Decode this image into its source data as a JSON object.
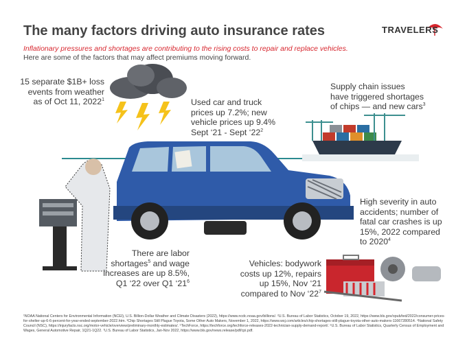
{
  "header": {
    "title": "The many factors driving auto insurance rates",
    "logo": "TRAVELERS",
    "subtitle": "Inflationary pressures and shortages are contributing to the rising costs to repair and replace vehicles.",
    "intro": "Here are some of the factors that may affect premiums moving forward."
  },
  "callouts": [
    {
      "lines": [
        "15 separate $1B+ loss",
        "events from weather",
        "as of Oct 11, 2022"
      ],
      "sup": "1"
    },
    {
      "lines": [
        "Used car and truck",
        "prices up 7.2%; new",
        "vehicle prices up 9.4%",
        "Sept ‘21 - Sept ‘22"
      ],
      "sup": "2"
    },
    {
      "lines": [
        "Supply chain issues",
        "have triggered shortages",
        "of chips — and new cars"
      ],
      "sup": "3"
    },
    {
      "lines": [
        "High severity in auto",
        "accidents; number of",
        "fatal car crashes is up",
        "15%, 2022 compared",
        "to 2020"
      ],
      "sup": "4"
    },
    {
      "lines": [
        "There are labor",
        "shortages",
        "and wage",
        "increases are up 8.5%,",
        "Q1 ‘22 over Q1 ‘21"
      ],
      "sups": [
        "5",
        "6"
      ]
    },
    {
      "lines": [
        "Vehicles: bodywork",
        "costs up 12%, repairs",
        "up 15%, Nov ‘21",
        "compared to Nov ‘22"
      ],
      "sup": "7"
    }
  ],
  "footnotes": "¹NOAA National Centers for Environmental Information (NCEI), U.S. Billion-Dollar Weather and Climate Disasters (2022), https://www.ncdc.noaa.gov/billions/. ²U.S. Bureau of Labor Statistics, October 19, 2022, https://www.bls.gov/opub/ted/2022/consumer-prices-for-shelter-up-6-6-percent-for-year-ended-september-2022.htm. ³Chip Shortages Still Plague Toyota, Some Other Auto Makers, November 1, 2022, https://www.wsj.com/articles/chip-shortages-still-plague-toyota-other-auto-makers-11667280514. ⁴National Safety Council (NSC), https://injuryfacts.nsc.org/motor-vehicle/overview/preliminary-monthly-estimates/. ⁵TechForce, https://techforce.org/techforce-releases-2022-technician-supply-demand-report/. ⁶U.S. Bureau of Labor Statistics, Quarterly Census of Employment and Wages, General Automotive Repair, 1Q21-1Q22. ⁷U.S. Bureau of Labor Statistics, Jan-Nov 2022, https://www.bls.gov/news.release/pdf/cpi.pdf."
}
